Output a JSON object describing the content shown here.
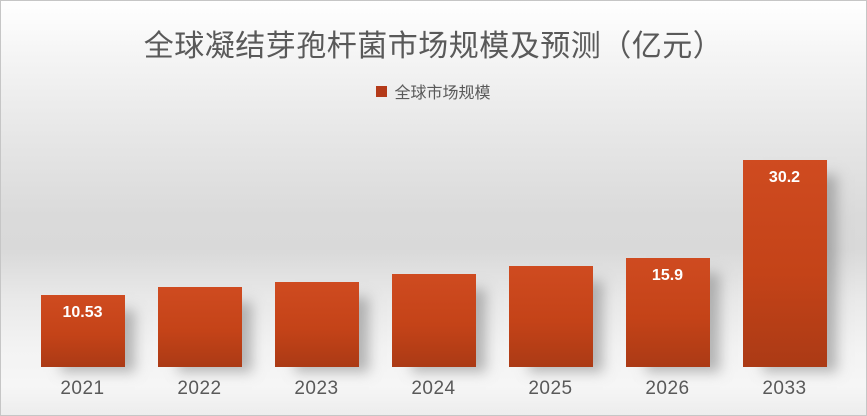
{
  "page": {
    "title": "全球凝结芽孢杆菌市场规模及预测（亿元）",
    "legend": {
      "label": "全球市场规模"
    }
  },
  "chart_data": {
    "type": "bar",
    "title": "全球凝结芽孢杆菌市场规模及预测（亿元）",
    "legend": [
      "全球市场规模"
    ],
    "legend_position": "top-center",
    "categories": [
      "2021",
      "2022",
      "2023",
      "2024",
      "2025",
      "2026",
      "2033"
    ],
    "series": [
      {
        "name": "全球市场规模",
        "values": [
          10.53,
          11.7,
          12.4,
          13.6,
          14.7,
          15.9,
          30.2
        ],
        "data_labels": [
          "10.53",
          "",
          "",
          "",
          "",
          "15.9",
          "30.2"
        ]
      }
    ],
    "xlabel": "",
    "ylabel": "",
    "ylim": [
      0,
      33
    ],
    "grid": false,
    "y_axis_visible": false,
    "x_axis_line_visible": false
  },
  "colors": {
    "bar_gradient_top": "#cf4b20",
    "bar_gradient_bottom": "#ab3a15",
    "legend_swatch": "#b43a19",
    "title_text": "#595959",
    "axis_label_text": "#595959",
    "data_label_text": "#ffffff",
    "frame_border": "#c6c6c6",
    "background_mid_gray": "#d9d9d9"
  }
}
